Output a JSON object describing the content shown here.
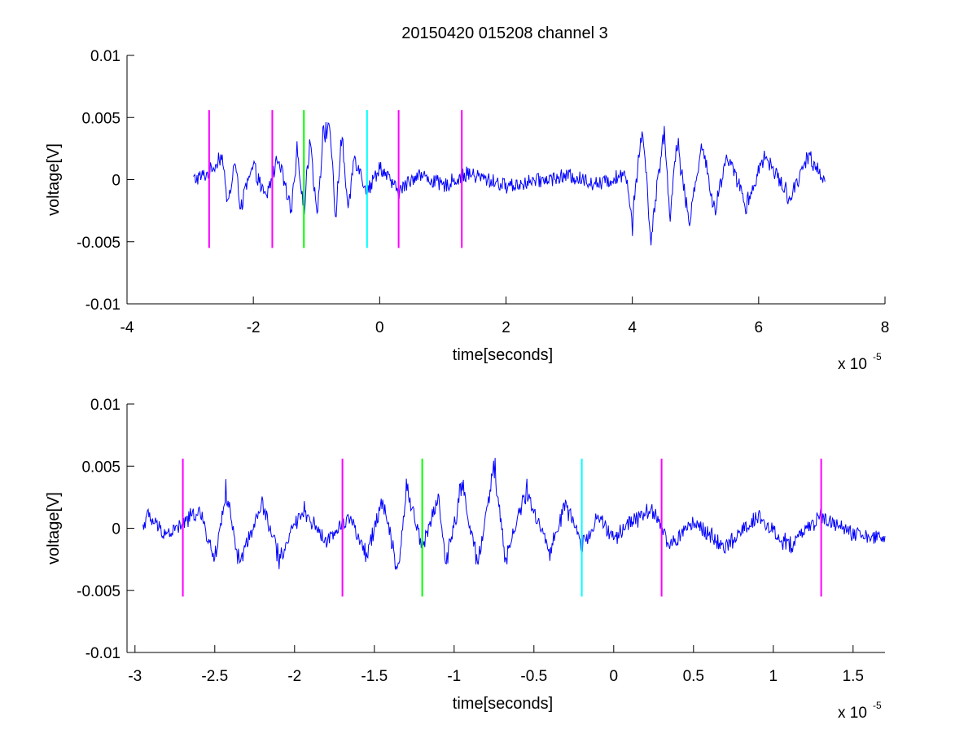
{
  "figure_title": "20150420 015208 channel 3",
  "chart_data": [
    {
      "type": "line",
      "title": "20150420 015208 channel 3",
      "xlabel": "time[seconds]",
      "ylabel": "voltage[V]",
      "x_multiplier_label": "x 10",
      "x_multiplier_exp": "-5",
      "xlim": [
        -4,
        8
      ],
      "ylim": [
        -0.01,
        0.01
      ],
      "xticks": [
        -4,
        -2,
        0,
        2,
        4,
        6,
        8
      ],
      "xtick_labels": [
        "-4",
        "-2",
        "0",
        "2",
        "4",
        "6",
        "8"
      ],
      "yticks": [
        -0.01,
        -0.005,
        0,
        0.005,
        0.01
      ],
      "ytick_labels": [
        "-0.01",
        "-0.005",
        "0",
        "0.005",
        "0.01"
      ],
      "series": [
        {
          "color": "#0000ff",
          "x_range": [
            -2.95,
            7.05
          ],
          "points": [
            [
              -2.95,
              0.0
            ],
            [
              -2.7,
              0.0005
            ],
            [
              -2.5,
              0.002
            ],
            [
              -2.4,
              -0.0025
            ],
            [
              -2.3,
              0.0015
            ],
            [
              -2.2,
              -0.002
            ],
            [
              -2.0,
              0.001
            ],
            [
              -1.8,
              -0.0015
            ],
            [
              -1.6,
              0.002
            ],
            [
              -1.4,
              -0.003
            ],
            [
              -1.3,
              0.0025
            ],
            [
              -1.2,
              -0.0025
            ],
            [
              -1.1,
              0.0035
            ],
            [
              -1.0,
              -0.003
            ],
            [
              -0.9,
              0.003
            ],
            [
              -0.8,
              0.005
            ],
            [
              -0.7,
              -0.003
            ],
            [
              -0.6,
              0.0035
            ],
            [
              -0.5,
              -0.0025
            ],
            [
              -0.4,
              0.002
            ],
            [
              -0.2,
              -0.001
            ],
            [
              0.0,
              0.001
            ],
            [
              0.3,
              -0.001
            ],
            [
              0.6,
              0.0005
            ],
            [
              1.0,
              -0.0005
            ],
            [
              1.4,
              0.0005
            ],
            [
              2.0,
              -0.0005
            ],
            [
              3.0,
              0.0003
            ],
            [
              3.5,
              -0.0004
            ],
            [
              3.9,
              0.0006
            ],
            [
              4.0,
              -0.0035
            ],
            [
              4.15,
              0.0045
            ],
            [
              4.3,
              -0.0045
            ],
            [
              4.5,
              0.004
            ],
            [
              4.6,
              -0.003
            ],
            [
              4.7,
              0.0035
            ],
            [
              4.9,
              -0.0035
            ],
            [
              5.1,
              0.003
            ],
            [
              5.3,
              -0.0025
            ],
            [
              5.5,
              0.002
            ],
            [
              5.8,
              -0.002
            ],
            [
              6.1,
              0.002
            ],
            [
              6.5,
              -0.0015
            ],
            [
              6.8,
              0.002
            ],
            [
              7.05,
              0.0
            ]
          ]
        }
      ],
      "markers": [
        {
          "x": -2.7,
          "color": "#ff00ff",
          "y_range": [
            -0.0055,
            0.0056
          ]
        },
        {
          "x": -1.7,
          "color": "#ff00ff",
          "y_range": [
            -0.0055,
            0.0056
          ]
        },
        {
          "x": -1.2,
          "color": "#00ff00",
          "y_range": [
            -0.0055,
            0.0056
          ]
        },
        {
          "x": -0.2,
          "color": "#00ffff",
          "y_range": [
            -0.0055,
            0.0056
          ]
        },
        {
          "x": 0.3,
          "color": "#ff00ff",
          "y_range": [
            -0.0055,
            0.0056
          ]
        },
        {
          "x": 1.3,
          "color": "#ff00ff",
          "y_range": [
            -0.0055,
            0.0056
          ]
        }
      ]
    },
    {
      "type": "line",
      "xlabel": "time[seconds]",
      "ylabel": "voltage[V]",
      "x_multiplier_label": "x 10",
      "x_multiplier_exp": "-5",
      "xlim": [
        -3.05,
        1.7
      ],
      "ylim": [
        -0.01,
        0.01
      ],
      "xticks": [
        -3,
        -2.5,
        -2,
        -1.5,
        -1,
        -0.5,
        0,
        0.5,
        1,
        1.5
      ],
      "xtick_labels": [
        "-3",
        "-2.5",
        "-2",
        "-1.5",
        "-1",
        "-0.5",
        "0",
        "0.5",
        "1",
        "1.5"
      ],
      "yticks": [
        -0.01,
        -0.005,
        0,
        0.005,
        0.01
      ],
      "ytick_labels": [
        "-0.01",
        "-0.005",
        "0",
        "0.005",
        "0.01"
      ],
      "series": [
        {
          "color": "#0000ff",
          "x_range": [
            -2.95,
            1.7
          ],
          "points": [
            [
              -2.95,
              0.0
            ],
            [
              -2.93,
              0.001
            ],
            [
              -2.8,
              -0.0005
            ],
            [
              -2.7,
              0.0003
            ],
            [
              -2.6,
              0.0015
            ],
            [
              -2.5,
              -0.0025
            ],
            [
              -2.43,
              0.003
            ],
            [
              -2.35,
              -0.003
            ],
            [
              -2.2,
              0.002
            ],
            [
              -2.1,
              -0.0025
            ],
            [
              -1.95,
              0.0015
            ],
            [
              -1.8,
              -0.001
            ],
            [
              -1.65,
              0.001
            ],
            [
              -1.55,
              -0.0025
            ],
            [
              -1.45,
              0.0025
            ],
            [
              -1.35,
              -0.0035
            ],
            [
              -1.3,
              0.0035
            ],
            [
              -1.2,
              -0.0015
            ],
            [
              -1.1,
              0.0025
            ],
            [
              -1.05,
              -0.003
            ],
            [
              -0.95,
              0.0035
            ],
            [
              -0.85,
              -0.003
            ],
            [
              -0.75,
              0.005
            ],
            [
              -0.68,
              -0.0025
            ],
            [
              -0.55,
              0.003
            ],
            [
              -0.4,
              -0.002
            ],
            [
              -0.3,
              0.002
            ],
            [
              -0.2,
              -0.0015
            ],
            [
              -0.1,
              0.001
            ],
            [
              0.0,
              -0.001
            ],
            [
              0.1,
              0.0005
            ],
            [
              0.25,
              0.0015
            ],
            [
              0.35,
              -0.0015
            ],
            [
              0.5,
              0.0005
            ],
            [
              0.7,
              -0.0015
            ],
            [
              0.9,
              0.001
            ],
            [
              1.1,
              -0.0015
            ],
            [
              1.3,
              0.001
            ],
            [
              1.5,
              -0.0005
            ],
            [
              1.7,
              -0.001
            ]
          ]
        }
      ],
      "markers": [
        {
          "x": -2.7,
          "color": "#ff00ff",
          "y_range": [
            -0.0055,
            0.0056
          ]
        },
        {
          "x": -1.7,
          "color": "#ff00ff",
          "y_range": [
            -0.0055,
            0.0056
          ]
        },
        {
          "x": -1.2,
          "color": "#00ff00",
          "y_range": [
            -0.0055,
            0.0056
          ]
        },
        {
          "x": -0.2,
          "color": "#00ffff",
          "y_range": [
            -0.0055,
            0.0056
          ]
        },
        {
          "x": 0.3,
          "color": "#ff00ff",
          "y_range": [
            -0.0055,
            0.0056
          ]
        },
        {
          "x": 1.3,
          "color": "#ff00ff",
          "y_range": [
            -0.0055,
            0.0056
          ]
        }
      ]
    }
  ]
}
